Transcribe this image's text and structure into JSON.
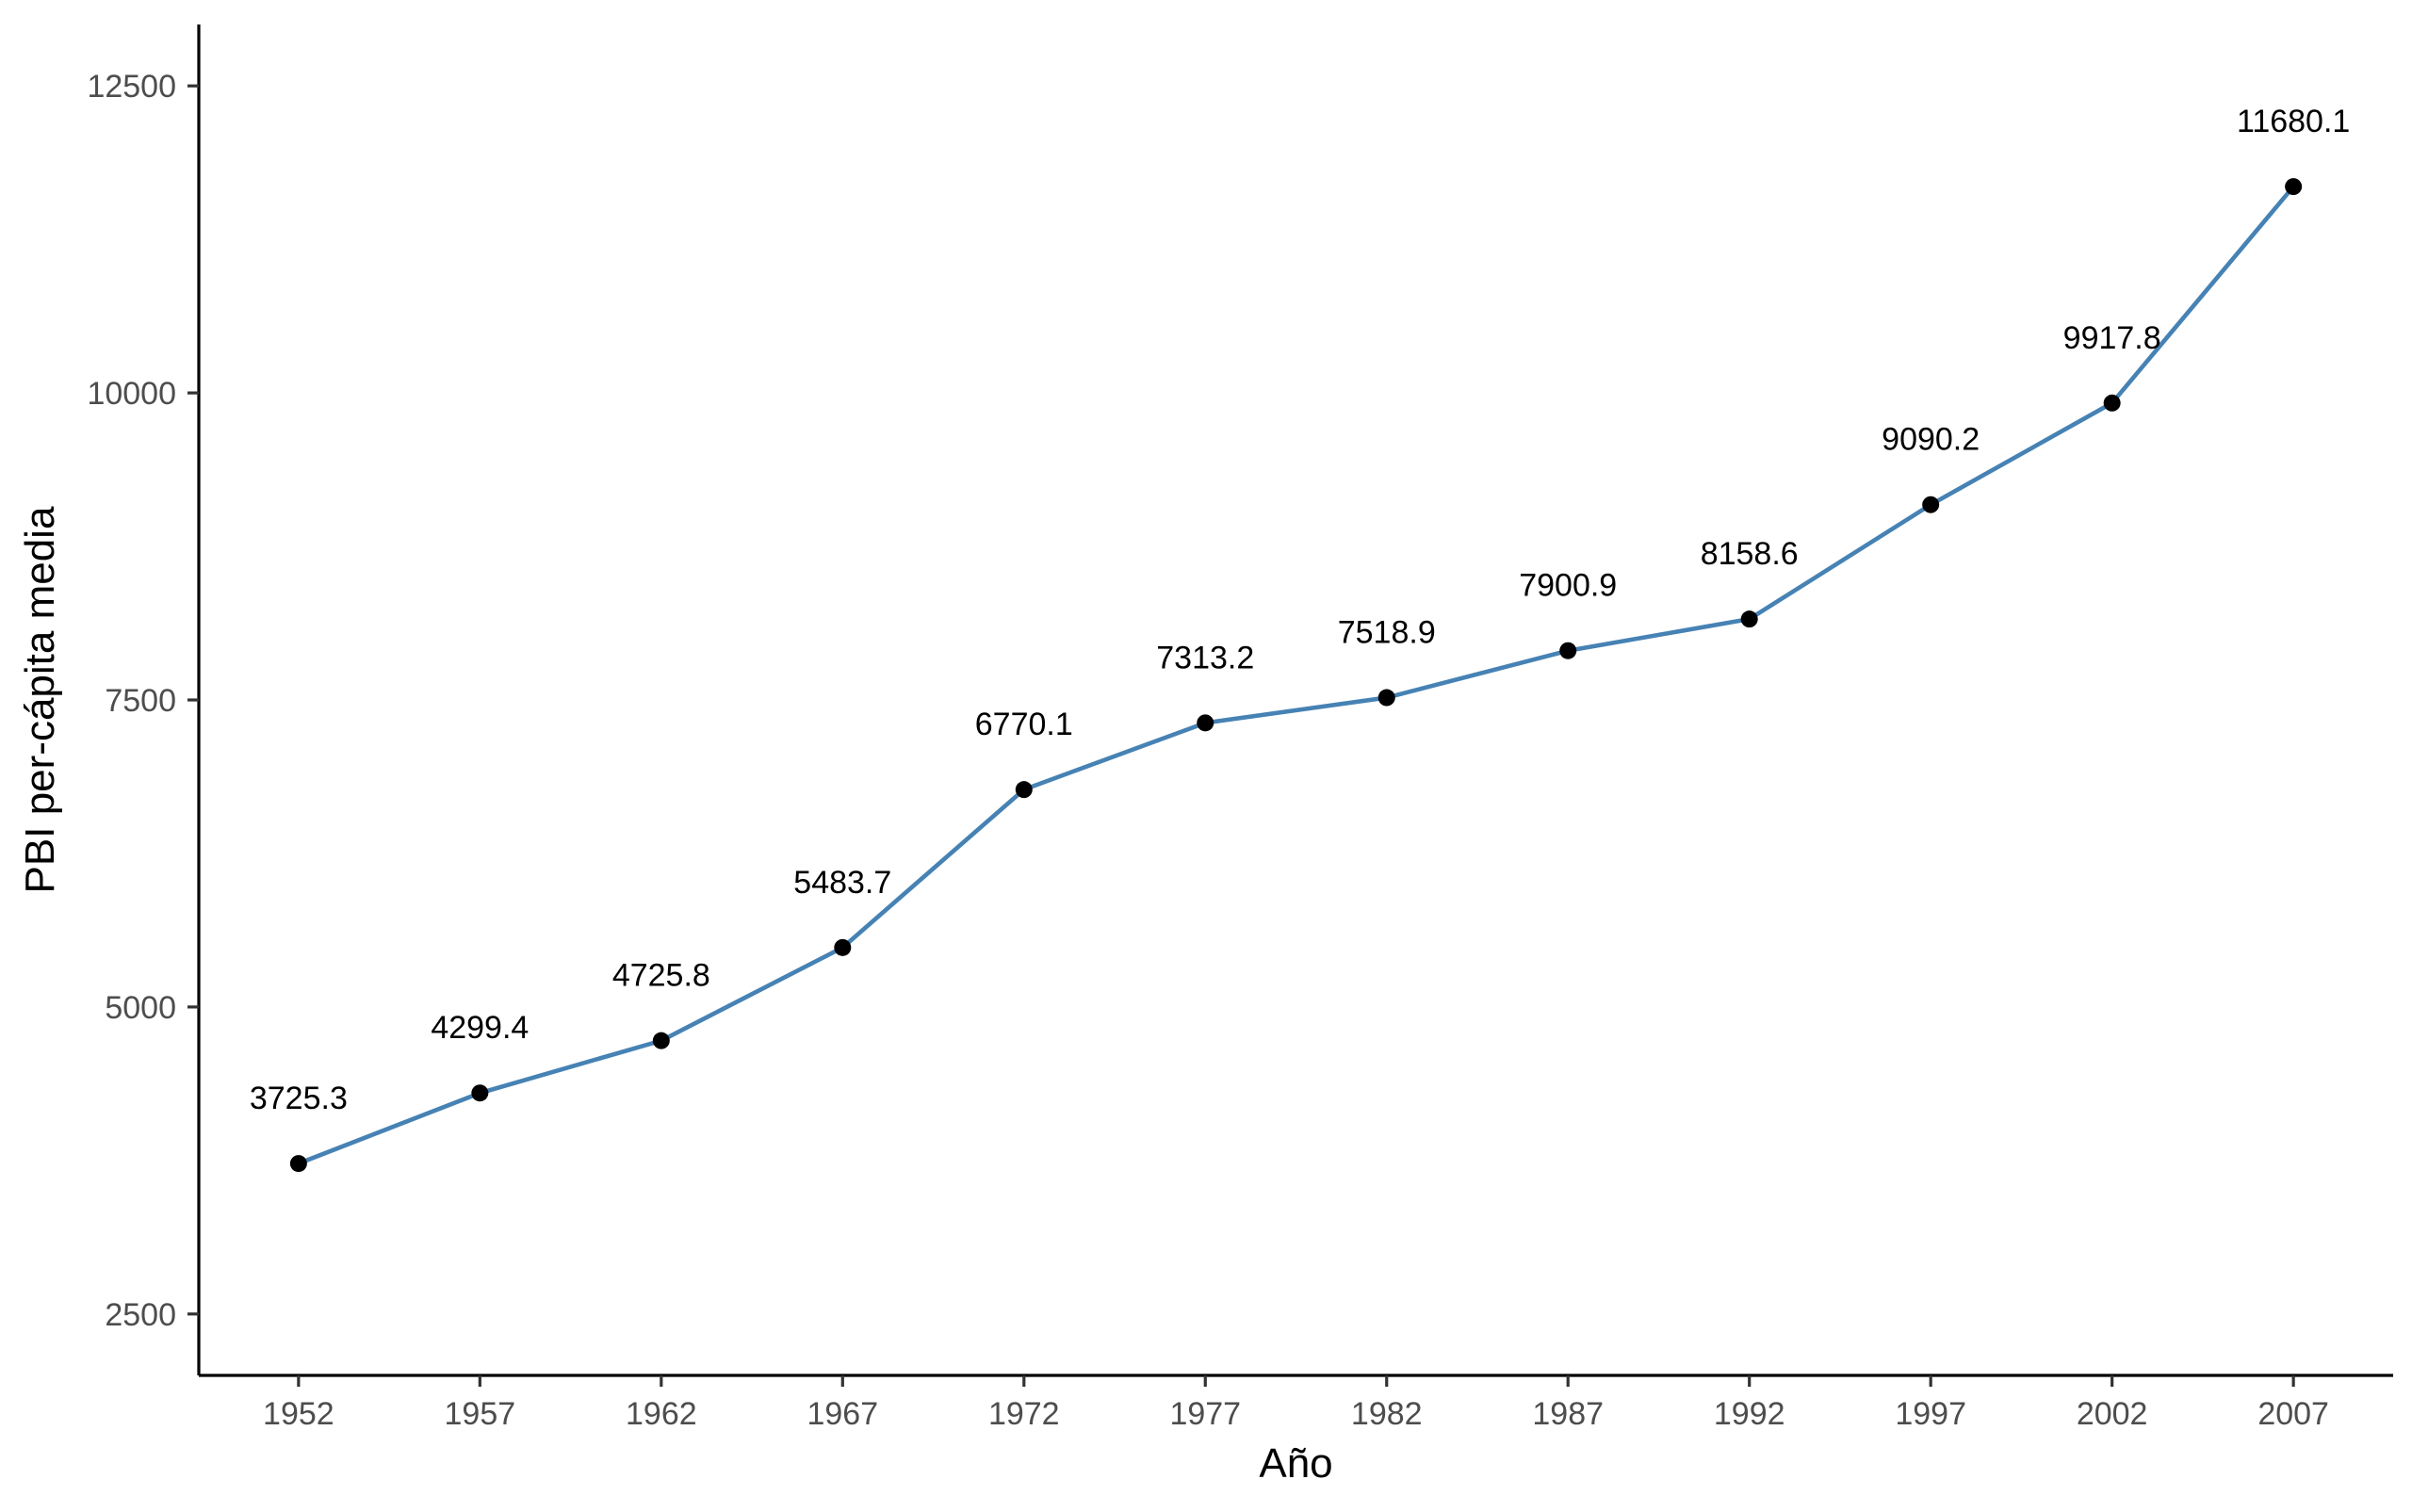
{
  "chart_data": {
    "type": "line",
    "title": "",
    "xlabel": "Año",
    "ylabel": "PBI per-cápita media",
    "x": [
      1952,
      1957,
      1962,
      1967,
      1972,
      1977,
      1982,
      1987,
      1992,
      1997,
      2002,
      2007
    ],
    "x_tick_labels": [
      "1952",
      "1957",
      "1962",
      "1967",
      "1972",
      "1977",
      "1982",
      "1987",
      "1992",
      "1997",
      "2002",
      "2007"
    ],
    "series": [
      {
        "values": [
          3725.3,
          4299.4,
          4725.8,
          5483.7,
          6770.1,
          7313.2,
          7518.9,
          7900.9,
          8158.6,
          9090.2,
          9917.8,
          11680.1
        ],
        "data_labels": [
          "3725.3",
          "4299.4",
          "4725.8",
          "5483.7",
          "6770.1",
          "7313.2",
          "7518.9",
          "7900.9",
          "8158.6",
          "9090.2",
          "9917.8",
          "11680.1"
        ],
        "line_color": "#4682B4",
        "point_color": "#000000"
      }
    ],
    "y_ticks": [
      2500,
      5000,
      7500,
      10000,
      12500
    ],
    "y_tick_labels": [
      "2500",
      "5000",
      "7500",
      "10000",
      "12500"
    ],
    "ylim": [
      2000,
      13000
    ],
    "xlim": [
      1949.25,
      2009.75
    ],
    "grid": false,
    "legend": "none"
  }
}
